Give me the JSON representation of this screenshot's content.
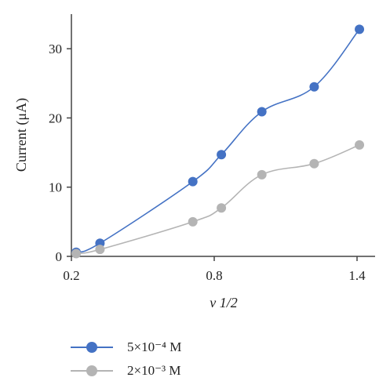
{
  "chart_data": {
    "type": "line",
    "xlabel": "ν 1/2",
    "ylabel": "Current (μA)",
    "xlim": [
      0.2,
      1.45
    ],
    "ylim": [
      0,
      35
    ],
    "xticks": [
      "0.2",
      "0.8",
      "1.4"
    ],
    "yticks": [
      "0",
      "10",
      "20",
      "30"
    ],
    "legend_position": "bottom-left",
    "grid": false,
    "series": [
      {
        "name": "5×10⁻⁴ M",
        "color": "#4472C4",
        "x": [
          0.22,
          0.32,
          0.71,
          0.83,
          1.0,
          1.22,
          1.41
        ],
        "y": [
          0.6,
          1.9,
          10.8,
          14.7,
          20.9,
          24.5,
          32.8
        ]
      },
      {
        "name": "2×10⁻³ M",
        "color": "#B4B4B4",
        "x": [
          0.22,
          0.32,
          0.71,
          0.83,
          1.0,
          1.22,
          1.41
        ],
        "y": [
          0.4,
          1.0,
          5.0,
          7.0,
          11.8,
          13.4,
          16.1
        ]
      }
    ]
  }
}
